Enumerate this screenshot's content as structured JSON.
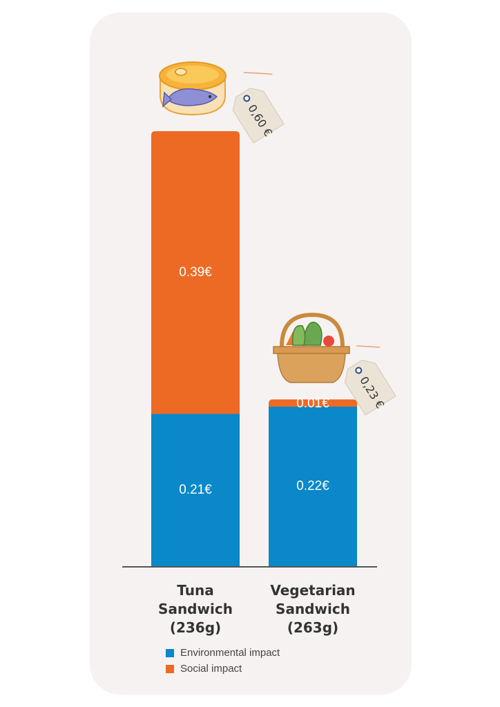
{
  "chart_data": {
    "type": "bar",
    "stacked": true,
    "categories": [
      "Tuna Sandwich (236g)",
      "Vegetarian Sandwich (263g)"
    ],
    "category_lines": [
      [
        "Tuna",
        "Sandwich",
        "(236g)"
      ],
      [
        "Vegetarian",
        "Sandwich",
        "(263g)"
      ]
    ],
    "series": [
      {
        "name": "Environmental impact",
        "color": "#0a88c9",
        "values": [
          0.21,
          0.22
        ],
        "labels": [
          "0.21€",
          "0.22€"
        ]
      },
      {
        "name": "Social impact",
        "color": "#ec6a24",
        "values": [
          0.39,
          0.01
        ],
        "labels": [
          "0.39€",
          "0.01€"
        ]
      }
    ],
    "totals": [
      0.6,
      0.23
    ],
    "price_tags": [
      "0,60 €",
      "0,23 €"
    ],
    "icons": [
      "tuna-can-icon",
      "vegetable-basket-icon"
    ],
    "legend": "bottom",
    "grid": false
  }
}
